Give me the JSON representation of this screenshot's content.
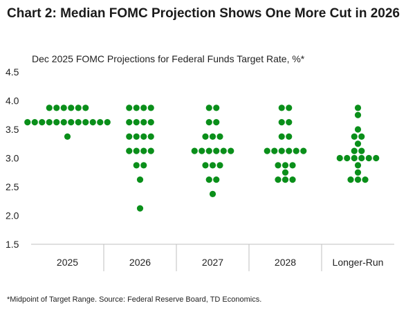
{
  "header": {
    "title": "Chart 2: Median FOMC Projection Shows One More Cut in 2026",
    "subtitle": "Dec 2025 FOMC Projections for Federal Funds Target Rate, %*",
    "footnote": "*Midpoint of Target Range. Source: Federal Reserve Board, TD Economics."
  },
  "colors": {
    "dot": "#0a8f1a",
    "axis": "#bfbfbf",
    "text": "#222222"
  },
  "chart_data": {
    "type": "scatter",
    "subtype": "dot-plot",
    "categories": [
      "2025",
      "2026",
      "2027",
      "2028",
      "Longer-Run"
    ],
    "ylim": [
      1.5,
      4.5
    ],
    "yticks": [
      "1.5",
      "2.0",
      "2.5",
      "3.0",
      "3.5",
      "4.0",
      "4.5"
    ],
    "grid": false,
    "dots": [
      [
        {
          "y": 3.875,
          "n": 6
        },
        {
          "y": 3.625,
          "n": 12
        },
        {
          "y": 3.375,
          "n": 1
        }
      ],
      [
        {
          "y": 3.875,
          "n": 4
        },
        {
          "y": 3.625,
          "n": 4
        },
        {
          "y": 3.375,
          "n": 4
        },
        {
          "y": 3.125,
          "n": 4
        },
        {
          "y": 2.875,
          "n": 2
        },
        {
          "y": 2.625,
          "n": 1
        },
        {
          "y": 2.125,
          "n": 1
        }
      ],
      [
        {
          "y": 3.875,
          "n": 2
        },
        {
          "y": 3.625,
          "n": 2
        },
        {
          "y": 3.375,
          "n": 3
        },
        {
          "y": 3.125,
          "n": 6
        },
        {
          "y": 2.875,
          "n": 3
        },
        {
          "y": 2.625,
          "n": 2
        },
        {
          "y": 2.375,
          "n": 1
        }
      ],
      [
        {
          "y": 3.875,
          "n": 2
        },
        {
          "y": 3.625,
          "n": 2
        },
        {
          "y": 3.375,
          "n": 2
        },
        {
          "y": 3.125,
          "n": 6
        },
        {
          "y": 2.875,
          "n": 3
        },
        {
          "y": 2.75,
          "n": 1
        },
        {
          "y": 2.625,
          "n": 3
        }
      ],
      [
        {
          "y": 3.875,
          "n": 1
        },
        {
          "y": 3.75,
          "n": 1
        },
        {
          "y": 3.5,
          "n": 1
        },
        {
          "y": 3.375,
          "n": 2
        },
        {
          "y": 3.25,
          "n": 1
        },
        {
          "y": 3.125,
          "n": 2
        },
        {
          "y": 3.0,
          "n": 6
        },
        {
          "y": 2.875,
          "n": 1
        },
        {
          "y": 2.75,
          "n": 1
        },
        {
          "y": 2.625,
          "n": 3
        }
      ]
    ]
  }
}
